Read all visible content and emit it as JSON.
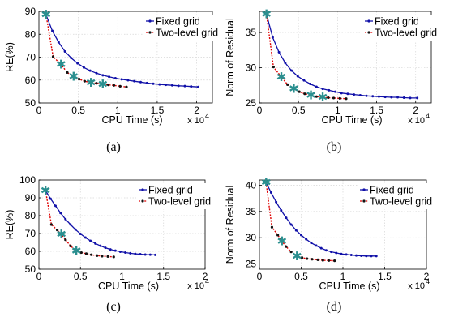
{
  "chart_data": [
    {
      "type": "line",
      "panel_label": "(a)",
      "xlabel": "CPU Time (s)",
      "ylabel": "RE(%)",
      "x_multiplier_label": "x 10",
      "x_multiplier_exp": "4",
      "xlim": [
        0,
        22000
      ],
      "ylim": [
        50,
        90
      ],
      "xticks": [
        0,
        5000,
        10000,
        15000,
        20000
      ],
      "xtick_labels": [
        "0",
        "0.5",
        "1",
        "1.5",
        "2"
      ],
      "yticks": [
        50,
        60,
        70,
        80,
        90
      ],
      "ytick_labels": [
        "50",
        "60",
        "70",
        "80",
        "90"
      ],
      "grid": true,
      "legend_position": "top-right",
      "series": [
        {
          "name": "Fixed grid",
          "color": "#1010a8",
          "marker": "dot",
          "x": [
            900,
            1700,
            2500,
            3300,
            4100,
            4900,
            5700,
            6500,
            7300,
            8100,
            8900,
            9700,
            10500,
            11300,
            12100,
            12900,
            13700,
            14500,
            15300,
            16100,
            16900,
            17700,
            18500,
            19300,
            20200
          ],
          "y": [
            88.5,
            81.5,
            76.5,
            72.5,
            69.6,
            67.3,
            65.5,
            64.1,
            63,
            62.1,
            61.4,
            60.8,
            60.3,
            59.9,
            59.5,
            59.1,
            58.7,
            58.4,
            58.1,
            57.9,
            57.7,
            57.5,
            57.4,
            57.2,
            57
          ]
        },
        {
          "name": "Two-level grid",
          "color": "#e00000",
          "marker": "dot",
          "star_color": "#2a8f8f",
          "x": [
            900,
            1800,
            2800,
            3600,
            4400,
            5100,
            5800,
            6600,
            7300,
            8100,
            8800,
            9500,
            10300,
            11100
          ],
          "y": [
            88.5,
            70.2,
            66.8,
            63.3,
            61.5,
            60.4,
            59.5,
            58.9,
            58.6,
            58.2,
            57.9,
            57.7,
            57.3,
            57
          ],
          "star_indices": [
            0,
            2,
            4,
            7,
            9
          ]
        }
      ]
    },
    {
      "type": "line",
      "panel_label": "(b)",
      "xlabel": "CPU Time (s)",
      "ylabel": "Norm of Residual",
      "x_multiplier_label": "x 10",
      "x_multiplier_exp": "4",
      "xlim": [
        0,
        22000
      ],
      "ylim": [
        25,
        38
      ],
      "xticks": [
        0,
        5000,
        10000,
        15000,
        20000
      ],
      "xtick_labels": [
        "0",
        "0.5",
        "1",
        "1.5",
        "2"
      ],
      "yticks": [
        25,
        30,
        35
      ],
      "ytick_labels": [
        "25",
        "30",
        "35"
      ],
      "grid": true,
      "legend_position": "top-right",
      "series": [
        {
          "name": "Fixed grid",
          "color": "#1010a8",
          "marker": "dot",
          "x": [
            900,
            1700,
            2500,
            3300,
            4100,
            4900,
            5700,
            6500,
            7300,
            8100,
            8900,
            9700,
            10500,
            11300,
            12100,
            12900,
            13700,
            14500,
            15300,
            16100,
            16900,
            17700,
            18500,
            19300,
            20200
          ],
          "y": [
            37.6,
            34.3,
            32.2,
            30.7,
            29.6,
            28.8,
            28.2,
            27.7,
            27.3,
            27,
            26.8,
            26.6,
            26.4,
            26.3,
            26.2,
            26.1,
            26,
            25.95,
            25.9,
            25.85,
            25.8,
            25.8,
            25.75,
            25.7,
            25.7
          ]
        },
        {
          "name": "Two-level grid",
          "color": "#e00000",
          "marker": "dot",
          "star_color": "#2a8f8f",
          "x": [
            900,
            1800,
            2800,
            3600,
            4400,
            5100,
            5800,
            6600,
            7300,
            8100,
            8800,
            9500,
            10300,
            11100
          ],
          "y": [
            37.6,
            30.1,
            28.7,
            27.6,
            27,
            26.6,
            26.3,
            26.1,
            25.9,
            25.8,
            25.75,
            25.7,
            25.65,
            25.6
          ],
          "star_indices": [
            0,
            2,
            4,
            7,
            9
          ]
        }
      ]
    },
    {
      "type": "line",
      "panel_label": "(c)",
      "xlabel": "CPU Time (s)",
      "ylabel": "RE(%)",
      "x_multiplier_label": "x 10",
      "x_multiplier_exp": "4",
      "xlim": [
        0,
        20000
      ],
      "ylim": [
        50,
        100
      ],
      "xticks": [
        0,
        5000,
        10000,
        15000,
        20000
      ],
      "xtick_labels": [
        "0",
        "0.5",
        "1",
        "1.5",
        "2"
      ],
      "yticks": [
        50,
        60,
        70,
        80,
        90,
        100
      ],
      "ytick_labels": [
        "50",
        "60",
        "70",
        "80",
        "90",
        "100"
      ],
      "grid": true,
      "legend_position": "top-right",
      "series": [
        {
          "name": "Fixed grid",
          "color": "#1010a8",
          "marker": "dot",
          "x": [
            800,
            1400,
            2000,
            2600,
            3200,
            3800,
            4400,
            5000,
            5600,
            6200,
            6800,
            7400,
            8000,
            8600,
            9200,
            9800,
            10400,
            11000,
            11600,
            12200,
            12800,
            13400,
            14000
          ],
          "y": [
            94,
            89.5,
            85.5,
            81.5,
            78,
            75,
            72.2,
            69.8,
            67.7,
            65.9,
            64.4,
            63.1,
            62,
            61.1,
            60.4,
            59.8,
            59.3,
            58.9,
            58.6,
            58.4,
            58.2,
            58.1,
            58
          ]
        },
        {
          "name": "Two-level grid",
          "color": "#e00000",
          "marker": "dot",
          "star_color": "#2a8f8f",
          "x": [
            800,
            1500,
            2200,
            2700,
            3200,
            3800,
            4500,
            5100,
            5700,
            6300,
            7000,
            7600,
            8300,
            9000
          ],
          "y": [
            94,
            75,
            72,
            69.5,
            66.5,
            63,
            60.3,
            59.3,
            58.7,
            58.1,
            57.6,
            57.3,
            57.1,
            56.9
          ],
          "star_indices": [
            0,
            3,
            6
          ]
        }
      ]
    },
    {
      "type": "line",
      "panel_label": "(d)",
      "xlabel": "CPU Time (s)",
      "ylabel": "Norm of Residual",
      "x_multiplier_label": "x 10",
      "x_multiplier_exp": "4",
      "xlim": [
        0,
        20000
      ],
      "ylim": [
        24,
        41
      ],
      "xticks": [
        0,
        5000,
        10000,
        15000,
        20000
      ],
      "xtick_labels": [
        "0",
        "0.5",
        "1",
        "1.5",
        "2"
      ],
      "yticks": [
        25,
        30,
        35,
        40
      ],
      "ytick_labels": [
        "25",
        "30",
        "35",
        "40"
      ],
      "grid": true,
      "legend_position": "top-right",
      "series": [
        {
          "name": "Fixed grid",
          "color": "#1010a8",
          "marker": "dot",
          "x": [
            800,
            1400,
            2000,
            2600,
            3200,
            3800,
            4400,
            5000,
            5600,
            6200,
            6800,
            7400,
            8000,
            8600,
            9200,
            9800,
            10400,
            11000,
            11600,
            12200,
            12800,
            13400,
            14000
          ],
          "y": [
            40.5,
            38.6,
            36.8,
            35.2,
            33.8,
            32.5,
            31.4,
            30.5,
            29.7,
            29,
            28.5,
            28,
            27.6,
            27.3,
            27.1,
            26.9,
            26.8,
            26.7,
            26.6,
            26.55,
            26.5,
            26.5,
            26.5
          ]
        },
        {
          "name": "Two-level grid",
          "color": "#e00000",
          "marker": "dot",
          "star_color": "#2a8f8f",
          "x": [
            800,
            1500,
            2200,
            2700,
            3200,
            3800,
            4500,
            5100,
            5700,
            6300,
            7000,
            7600,
            8300,
            9000
          ],
          "y": [
            40.5,
            32,
            30.5,
            29.3,
            28.3,
            27.3,
            26.5,
            26.2,
            26,
            25.9,
            25.8,
            25.7,
            25.65,
            25.6
          ],
          "star_indices": [
            0,
            3,
            6
          ]
        }
      ]
    }
  ]
}
